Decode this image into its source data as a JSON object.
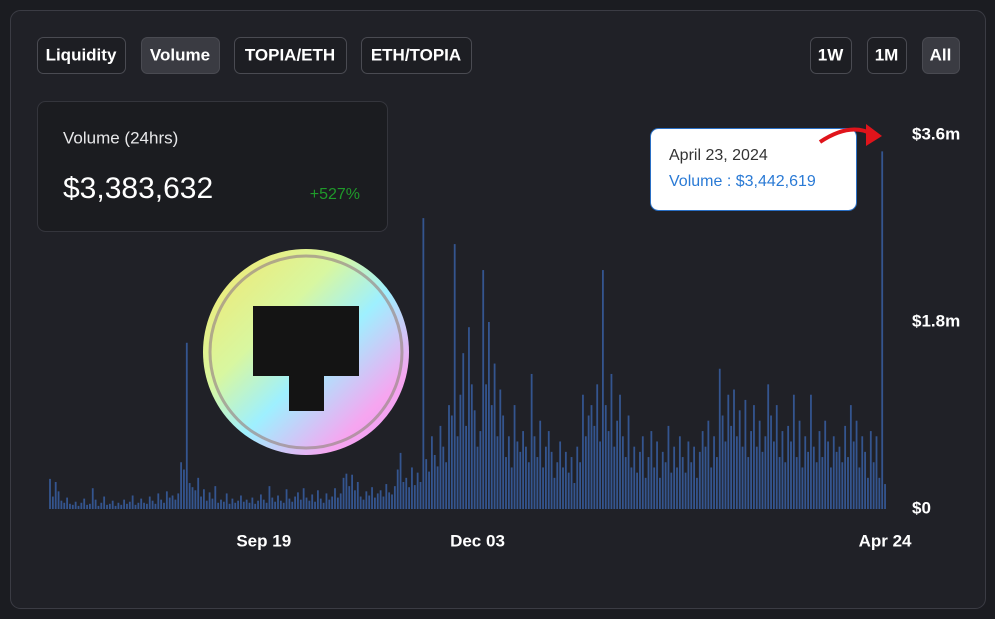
{
  "buttons": [
    "Liquidity",
    "Volume",
    "TOPIA/ETH",
    "ETH/TOPIA"
  ],
  "range_buttons": [
    "1W",
    "1M",
    "All"
  ],
  "card": {
    "title": "Volume (24hrs)",
    "value": "$3,383,632",
    "change": "+527%"
  },
  "tooltip": {
    "date": "April 23, 2024",
    "label": "Volume : $3,442,619"
  },
  "chart_data": {
    "type": "bar",
    "color": "#34558f",
    "categories": [
      null,
      null,
      null,
      null,
      null,
      null,
      null,
      null,
      null,
      null,
      null,
      null,
      null,
      null,
      null,
      null,
      null,
      null,
      null,
      null,
      null,
      null,
      null,
      null,
      null,
      null,
      null,
      null,
      null,
      null,
      null,
      null,
      null,
      null,
      null,
      null,
      null,
      null,
      null,
      null,
      null,
      null,
      null,
      null,
      null,
      null,
      null,
      null,
      null,
      null,
      null,
      null,
      null,
      null,
      null,
      null,
      null,
      null,
      null,
      null,
      null,
      null,
      null,
      null,
      null,
      null,
      null,
      null,
      null,
      null,
      null,
      null,
      null,
      null,
      null,
      "Sep 19",
      null,
      null,
      null,
      null,
      null,
      null,
      null,
      null,
      null,
      null,
      null,
      null,
      null,
      null,
      null,
      null,
      null,
      null,
      null,
      null,
      null,
      null,
      null,
      null,
      null,
      null,
      null,
      null,
      null,
      null,
      null,
      null,
      null,
      null,
      null,
      null,
      null,
      null,
      null,
      null,
      null,
      null,
      null,
      null,
      null,
      null,
      null,
      null,
      null,
      null,
      null,
      null,
      null,
      null,
      null,
      null,
      null,
      null,
      null,
      null,
      null,
      null,
      null,
      null,
      null,
      null,
      null,
      null,
      null,
      null,
      null,
      null,
      null,
      null,
      "Dec 03",
      null,
      null,
      null,
      null,
      null,
      null,
      null,
      null,
      null,
      null,
      null,
      null,
      null,
      null,
      null,
      null,
      null,
      null,
      null,
      null,
      null,
      null,
      null,
      null,
      null,
      null,
      null,
      null,
      null,
      null,
      null,
      null,
      null,
      null,
      null,
      null,
      null,
      null,
      null,
      null,
      null,
      null,
      null,
      null,
      null,
      null,
      null,
      null,
      null,
      null,
      null,
      null,
      null,
      null,
      null,
      null,
      null,
      null,
      null,
      null,
      null,
      null,
      null,
      null,
      null,
      null,
      null,
      null,
      null,
      null,
      null,
      null,
      null,
      null,
      null,
      null,
      null,
      null,
      null,
      null,
      null,
      null,
      null,
      null,
      null,
      null,
      null,
      null,
      null,
      null,
      null,
      null,
      null,
      null,
      null,
      null,
      null,
      null,
      null,
      null,
      null,
      null,
      null,
      null,
      null,
      null,
      null,
      null,
      null,
      null,
      null,
      null,
      null,
      null,
      null,
      null,
      null,
      null,
      null,
      null,
      null,
      null,
      null,
      null,
      null,
      null,
      null,
      null,
      null,
      null,
      null,
      null,
      null,
      null,
      null,
      null,
      null,
      null,
      null,
      null,
      null,
      null,
      "Apr 24"
    ],
    "values": [
      290000,
      120000,
      260000,
      170000,
      80000,
      60000,
      110000,
      50000,
      40000,
      70000,
      30000,
      60000,
      100000,
      40000,
      50000,
      200000,
      90000,
      30000,
      60000,
      120000,
      40000,
      50000,
      80000,
      30000,
      60000,
      40000,
      90000,
      50000,
      70000,
      130000,
      40000,
      60000,
      100000,
      60000,
      50000,
      120000,
      80000,
      50000,
      150000,
      90000,
      60000,
      170000,
      110000,
      130000,
      90000,
      150000,
      450000,
      380000,
      1600000,
      250000,
      210000,
      180000,
      300000,
      120000,
      190000,
      80000,
      160000,
      100000,
      220000,
      60000,
      90000,
      70000,
      150000,
      50000,
      100000,
      60000,
      80000,
      130000,
      70000,
      90000,
      60000,
      110000,
      50000,
      80000,
      140000,
      90000,
      60000,
      220000,
      110000,
      70000,
      130000,
      80000,
      60000,
      190000,
      100000,
      70000,
      120000,
      160000,
      90000,
      200000,
      110000,
      80000,
      140000,
      70000,
      180000,
      100000,
      60000,
      150000,
      90000,
      120000,
      200000,
      110000,
      150000,
      300000,
      340000,
      220000,
      330000,
      180000,
      260000,
      120000,
      90000,
      170000,
      130000,
      210000,
      110000,
      150000,
      180000,
      120000,
      240000,
      160000,
      140000,
      220000,
      380000,
      540000,
      260000,
      300000,
      210000,
      400000,
      230000,
      350000,
      260000,
      2800000,
      480000,
      360000,
      700000,
      520000,
      410000,
      800000,
      600000,
      450000,
      1000000,
      900000,
      2550000,
      700000,
      1100000,
      1500000,
      800000,
      1750000,
      1200000,
      950000,
      600000,
      750000,
      2300000,
      1200000,
      1800000,
      1000000,
      1400000,
      700000,
      1150000,
      900000,
      500000,
      700000,
      400000,
      1000000,
      650000,
      550000,
      750000,
      600000,
      450000,
      1300000,
      700000,
      500000,
      850000,
      400000,
      600000,
      750000,
      550000,
      300000,
      450000,
      650000,
      400000,
      550000,
      350000,
      500000,
      250000,
      600000,
      450000,
      1100000,
      700000,
      900000,
      1000000,
      800000,
      1200000,
      650000,
      2300000,
      1000000,
      750000,
      1300000,
      600000,
      850000,
      1100000,
      700000,
      500000,
      900000,
      400000,
      600000,
      350000,
      550000,
      700000,
      300000,
      500000,
      750000,
      400000,
      650000,
      300000,
      550000,
      450000,
      800000,
      350000,
      600000,
      400000,
      700000,
      500000,
      350000,
      650000,
      450000,
      600000,
      300000,
      550000,
      750000,
      600000,
      850000,
      400000,
      700000,
      500000,
      1350000,
      900000,
      650000,
      1100000,
      800000,
      1150000,
      700000,
      950000,
      600000,
      1050000,
      500000,
      750000,
      1000000,
      600000,
      850000,
      550000,
      700000,
      1200000,
      900000,
      650000,
      1000000,
      500000,
      750000,
      450000,
      800000,
      650000,
      1100000,
      500000,
      850000,
      400000,
      700000,
      550000,
      1100000,
      600000,
      450000,
      750000,
      500000,
      850000,
      650000,
      400000,
      700000,
      550000,
      600000,
      450000,
      800000,
      500000,
      1000000,
      650000,
      850000,
      400000,
      700000,
      550000,
      300000,
      750000,
      450000,
      700000,
      300000,
      3442619,
      240000
    ],
    "ylim": [
      0,
      3600000
    ],
    "yticks": [
      {
        "value": 0,
        "label": "$0"
      },
      {
        "value": 1800000,
        "label": "$1.8m"
      },
      {
        "value": 3600000,
        "label": "$3.6m"
      }
    ]
  }
}
